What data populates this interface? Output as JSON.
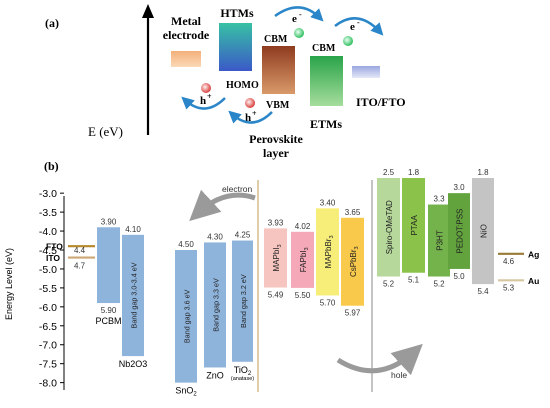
{
  "panel_a": {
    "label": "(a)",
    "metal_electrode": [
      "Metal",
      "electrode"
    ],
    "htms": "HTMs",
    "homo": "HOMO",
    "cbm_left": "CBM",
    "vbm": "VBM",
    "cbm_right": "CBM",
    "perovskite": [
      "Perovskite",
      "layer"
    ],
    "etms": "ETMs",
    "ito_fto": "ITO/FTO",
    "energy_axis": "E (eV)",
    "electron_symbol": "e",
    "hole_symbol": "h",
    "minus": "-",
    "plus": "+"
  },
  "panel_b": {
    "label": "(b)",
    "electron_label": "electron",
    "hole_label": "hole",
    "colors": {
      "etm": "#8fb4dc",
      "mapbi3": "#f7c5c0",
      "fapbi3": "#f5a8b8",
      "mapbbr3": "#f7ee7a",
      "cspbbr3": "#f8c94a",
      "spiro": "#b6d89a",
      "ptaa": "#8bc34a",
      "p3ht": "#74b24c",
      "pedot": "#62a33e",
      "nio": "#c4c4c4",
      "electrode_fto": "#b5872a",
      "electrode_ito": "#cda876",
      "electrode_ag": "#9a7a37",
      "electrode_au": "#d6c7a0"
    }
  },
  "chart_data": {
    "type": "bar",
    "ylabel": "Energy Level (eV)",
    "ylim": [
      -8.3,
      -2.6
    ],
    "yticks": [
      "-3.0",
      "-3.5",
      "-4.0",
      "-4.5",
      "-5.0",
      "-5.5",
      "-6.0",
      "-6.5",
      "-7.0",
      "-7.5",
      "-8.0"
    ],
    "ytick_values": [
      -3.0,
      -3.5,
      -4.0,
      -4.5,
      -5.0,
      -5.5,
      -6.0,
      -6.5,
      -7.0,
      -7.5,
      -8.0
    ],
    "electrodes": [
      {
        "name": "FTO",
        "value": -4.4,
        "label": "4.4",
        "side": "left",
        "color_key": "electrode_fto"
      },
      {
        "name": "ITO",
        "value": -4.7,
        "label": "4.7",
        "side": "left",
        "color_key": "electrode_ito"
      },
      {
        "name": "Ag",
        "value": -4.6,
        "label": "4.6",
        "side": "right",
        "color_key": "electrode_ag"
      },
      {
        "name": "Au",
        "value": -5.3,
        "label": "5.3",
        "side": "right",
        "color_key": "electrode_au"
      }
    ],
    "materials": [
      {
        "name": "PCBM",
        "group": "ETM",
        "top": -3.9,
        "bottom": -5.9,
        "top_label": "3.90",
        "bottom_label": "5.90",
        "inner_text": "",
        "color_key": "etm"
      },
      {
        "name": "Nb2O3",
        "group": "ETM",
        "top": -4.1,
        "bottom": -7.3,
        "top_label": "4.10",
        "bottom_label": "",
        "inner_text": "Band gap 3.0-3.4 eV",
        "color_key": "etm"
      },
      {
        "name": "SnO2",
        "group": "ETM",
        "top": -4.5,
        "bottom": -8.0,
        "top_label": "4.50",
        "bottom_label": "",
        "inner_text": "Band gap 3.6 eV",
        "color_key": "etm"
      },
      {
        "name": "ZnO",
        "group": "ETM",
        "top": -4.3,
        "bottom": -7.6,
        "top_label": "4.30",
        "bottom_label": "",
        "inner_text": "Band gap 3.3 eV",
        "color_key": "etm"
      },
      {
        "name": "TiO2",
        "group": "ETM",
        "top": -4.25,
        "bottom": -7.45,
        "top_label": "4.25",
        "bottom_label": "",
        "inner_text": "Band gap 3.2 eV",
        "note": "(anatase)",
        "color_key": "etm"
      },
      {
        "name": "MAPbI3",
        "group": "Perovskite",
        "top": -3.93,
        "bottom": -5.49,
        "top_label": "3.93",
        "bottom_label": "5.49",
        "inner_text": "MAPbI3",
        "color_key": "mapbi3"
      },
      {
        "name": "FAPbI3",
        "group": "Perovskite",
        "top": -4.02,
        "bottom": -5.5,
        "top_label": "4.02",
        "bottom_label": "5.50",
        "inner_text": "FAPbI3",
        "color_key": "fapbi3"
      },
      {
        "name": "MAPbBr3",
        "group": "Perovskite",
        "top": -3.4,
        "bottom": -5.7,
        "top_label": "3.40",
        "bottom_label": "5.70",
        "inner_text": "MAPbBr3",
        "color_key": "mapbbr3"
      },
      {
        "name": "CsPbBr3",
        "group": "Perovskite",
        "top": -3.65,
        "bottom": -5.97,
        "top_label": "3.65",
        "bottom_label": "5.97",
        "inner_text": "CsPbBr3",
        "color_key": "cspbbr3"
      },
      {
        "name": "Spiro-OMeTAD",
        "group": "HTM",
        "top": -2.5,
        "bottom": -5.2,
        "top_label": "2.5",
        "bottom_label": "5.2",
        "inner_text": "Spiro-OMeTAD",
        "color_key": "spiro"
      },
      {
        "name": "PTAA",
        "group": "HTM",
        "top": -1.8,
        "bottom": -5.1,
        "top_label": "1.8",
        "bottom_label": "5.1",
        "inner_text": "PTAA",
        "color_key": "ptaa"
      },
      {
        "name": "P3HT",
        "group": "HTM",
        "top": -3.3,
        "bottom": -5.2,
        "top_label": "3.3",
        "bottom_label": "5.2",
        "inner_text": "P3HT",
        "color_key": "p3ht"
      },
      {
        "name": "PEDOT:PSS",
        "group": "HTM",
        "top": -3.0,
        "bottom": -5.0,
        "top_label": "3.0",
        "bottom_label": "5.0",
        "inner_text": "PEDOT:PSS",
        "color_key": "pedot"
      },
      {
        "name": "NiO",
        "group": "HTM",
        "top": -1.8,
        "bottom": -5.4,
        "top_label": "1.8",
        "bottom_label": "5.4",
        "inner_text": "NiO",
        "color_key": "nio"
      }
    ]
  }
}
